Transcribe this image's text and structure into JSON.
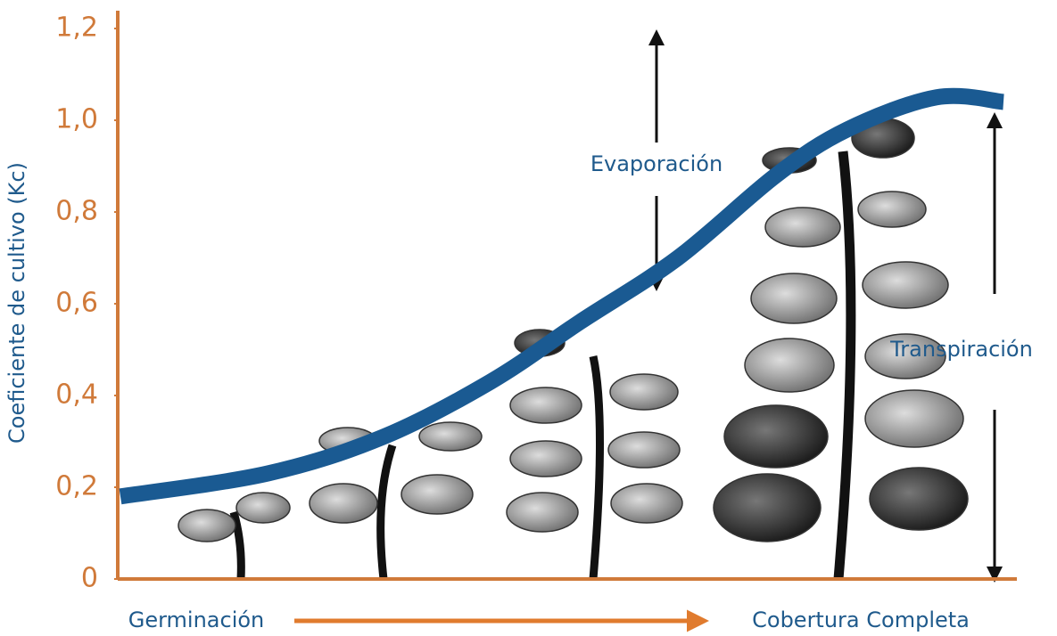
{
  "chart_data": {
    "type": "line",
    "ylabel": "Coeficiente de cultivo (Kc)",
    "ylim": [
      0,
      1.2
    ],
    "yticks": [
      0,
      {
        "value": 0.2,
        "label": "0,2"
      },
      {
        "value": 0.4,
        "label": "0,4"
      },
      {
        "value": 0.6,
        "label": "0,6"
      },
      {
        "value": 0.8,
        "label": "0,8"
      },
      {
        "value": 1.0,
        "label": "1,0"
      },
      {
        "value": 1.2,
        "label": "1,2"
      }
    ],
    "xlim": [
      0,
      1005
    ],
    "x": [
      0,
      165,
      295,
      415,
      515,
      625,
      735,
      815,
      915,
      990
    ],
    "series": [
      {
        "name": "Kc",
        "color": "#1a5a92",
        "values": [
          0.18,
          0.23,
          0.31,
          0.43,
          0.56,
          0.7,
          0.88,
          0.98,
          1.05,
          1.04
        ]
      }
    ],
    "annotations": {
      "evaporation": "Evaporación",
      "transpiration": "Transpiración",
      "start": "Germinación",
      "end": "Cobertura Completa"
    },
    "axis_color": "#d07a3a"
  }
}
